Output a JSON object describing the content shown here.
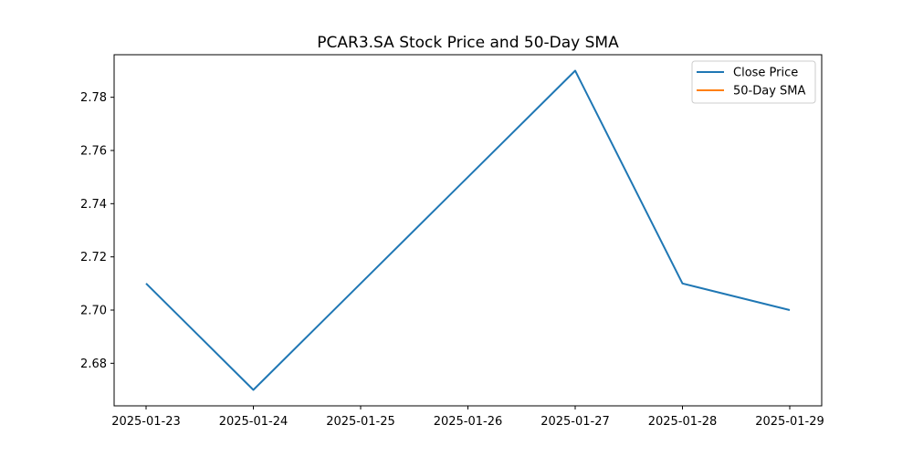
{
  "chart_data": {
    "type": "line",
    "title": "PCAR3.SA Stock Price and 50-Day SMA",
    "xlabel": "",
    "ylabel": "",
    "x": [
      "2025-01-23",
      "2025-01-24",
      "2025-01-25",
      "2025-01-26",
      "2025-01-27",
      "2025-01-28",
      "2025-01-29"
    ],
    "x_ticks": [
      "2025-01-23",
      "2025-01-24",
      "2025-01-25",
      "2025-01-26",
      "2025-01-27",
      "2025-01-28",
      "2025-01-29"
    ],
    "y_ticks": [
      2.68,
      2.7,
      2.72,
      2.74,
      2.76,
      2.78
    ],
    "ylim": [
      2.664,
      2.796
    ],
    "grid": false,
    "legend_position": "top-right",
    "series": [
      {
        "name": "Close Price",
        "color": "#1f77b4",
        "points": [
          {
            "x": "2025-01-23",
            "y": 2.71
          },
          {
            "x": "2025-01-24",
            "y": 2.67
          },
          {
            "x": "2025-01-27",
            "y": 2.79
          },
          {
            "x": "2025-01-28",
            "y": 2.71
          },
          {
            "x": "2025-01-29",
            "y": 2.7
          }
        ]
      },
      {
        "name": "50-Day SMA",
        "color": "#ff7f0e",
        "points": []
      }
    ]
  }
}
